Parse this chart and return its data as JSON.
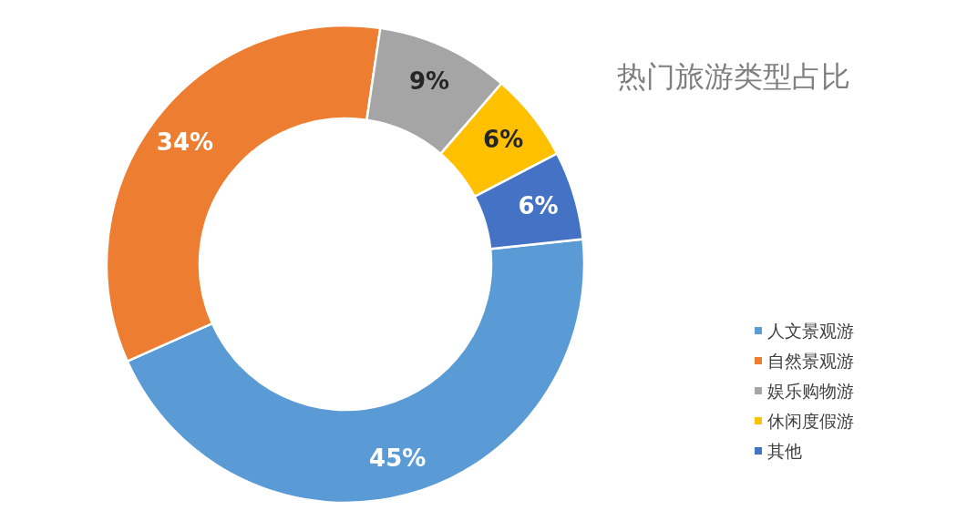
{
  "chart_data": {
    "type": "donut",
    "title": "热门旅游类型占比",
    "categories": [
      "人文景观游",
      "自然景观游",
      "娱乐购物游",
      "休闲度假游",
      "其他"
    ],
    "values": [
      45,
      34,
      9,
      6,
      6
    ],
    "colors": [
      "#5b9bd5",
      "#ed7d31",
      "#a5a5a5",
      "#ffc000",
      "#4472c4"
    ],
    "value_labels": [
      "45%",
      "34%",
      "9%",
      "6%",
      "6%"
    ],
    "legend": "bottom right"
  }
}
